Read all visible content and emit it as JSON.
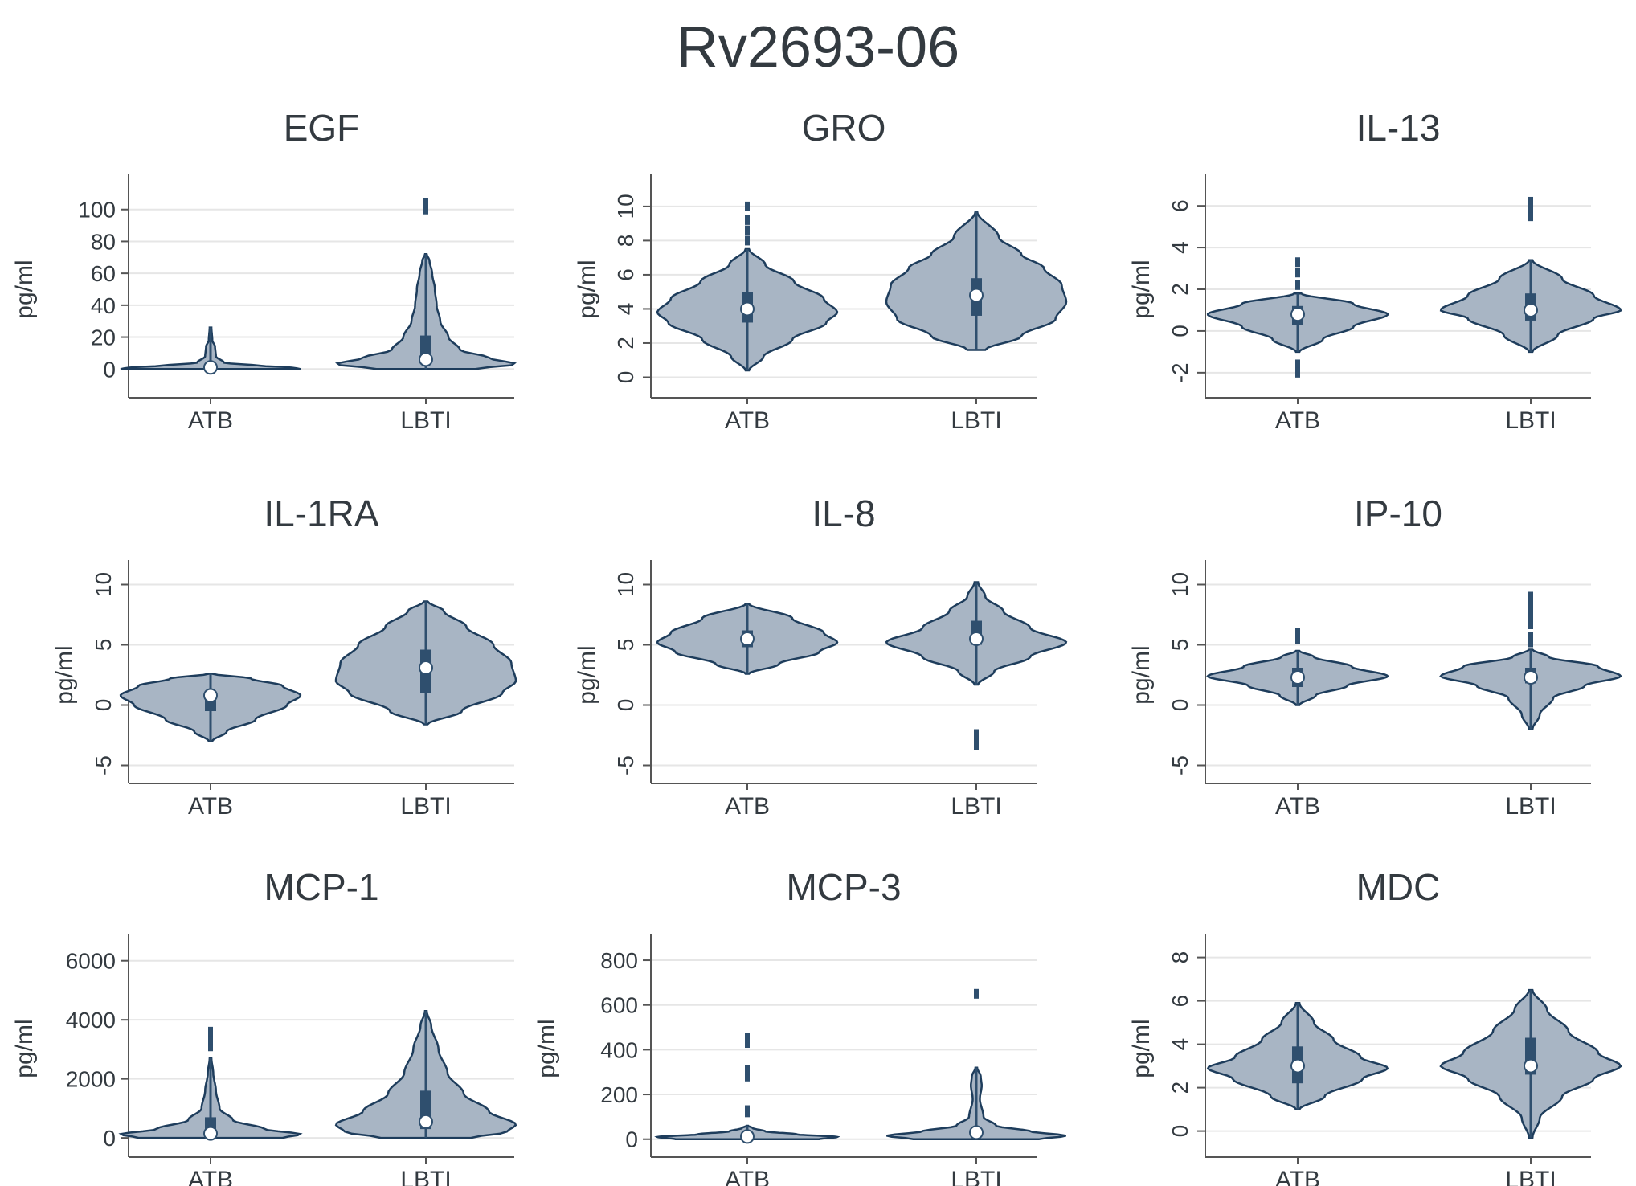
{
  "title": "Rv2693-06",
  "colors": {
    "violin_fill": "#a8b5c4",
    "violin_stroke": "#1e3d5c",
    "box": "#2f4f6e",
    "grid": "#e6e6e6",
    "axis": "#555555",
    "text": "#333a40"
  },
  "chart_data": [
    {
      "type": "violin",
      "title": "EGF",
      "ylabel": "pg/ml",
      "categories": [
        "ATB",
        "LBTI"
      ],
      "ylim": [
        -18,
        118
      ],
      "yticks": [
        0,
        20,
        40,
        60,
        80,
        100
      ],
      "tick_rotation": 0,
      "series": [
        {
          "name": "ATB",
          "min": 0,
          "max": 26,
          "q1": 0,
          "q3": 2,
          "median": 1,
          "density": [
            [
              0,
              1.0
            ],
            [
              1,
              0.9
            ],
            [
              2,
              0.55
            ],
            [
              4,
              0.15
            ],
            [
              8,
              0.06
            ],
            [
              14,
              0.05
            ],
            [
              18,
              0.02
            ],
            [
              26,
              0.01
            ]
          ],
          "outliers": []
        },
        {
          "name": "LBTI",
          "min": 0,
          "max": 72,
          "q1": 5,
          "q3": 21,
          "median": 6,
          "density": [
            [
              0,
              0.55
            ],
            [
              3,
              1.0
            ],
            [
              7,
              0.7
            ],
            [
              12,
              0.38
            ],
            [
              20,
              0.25
            ],
            [
              30,
              0.16
            ],
            [
              40,
              0.12
            ],
            [
              50,
              0.1
            ],
            [
              60,
              0.07
            ],
            [
              68,
              0.04
            ],
            [
              72,
              0.01
            ]
          ],
          "outliers": [
            100,
            104
          ]
        }
      ]
    },
    {
      "type": "violin",
      "title": "GRO",
      "ylabel": "pg/ml",
      "categories": [
        "ATB",
        "LBTI"
      ],
      "ylim": [
        -1.2,
        11.5
      ],
      "yticks": [
        0,
        2,
        4,
        6,
        8,
        10
      ],
      "tick_rotation": -90,
      "series": [
        {
          "name": "ATB",
          "min": 0.4,
          "max": 7.5,
          "q1": 3.2,
          "q3": 5.0,
          "median": 4.0,
          "density": [
            [
              0.4,
              0.02
            ],
            [
              1.2,
              0.18
            ],
            [
              2.2,
              0.5
            ],
            [
              3.2,
              0.88
            ],
            [
              3.8,
              1.0
            ],
            [
              4.6,
              0.85
            ],
            [
              5.6,
              0.52
            ],
            [
              6.6,
              0.2
            ],
            [
              7.5,
              0.02
            ]
          ],
          "outliers": [
            8,
            8.6,
            9.2,
            10
          ]
        },
        {
          "name": "LBTI",
          "min": 1.6,
          "max": 9.7,
          "q1": 3.6,
          "q3": 5.8,
          "median": 4.8,
          "density": [
            [
              1.6,
              0.1
            ],
            [
              2.4,
              0.5
            ],
            [
              3.4,
              0.88
            ],
            [
              4.4,
              1.0
            ],
            [
              5.4,
              0.95
            ],
            [
              6.4,
              0.75
            ],
            [
              7.2,
              0.5
            ],
            [
              8.2,
              0.25
            ],
            [
              9.7,
              0.01
            ]
          ],
          "outliers": []
        }
      ]
    },
    {
      "type": "violin",
      "title": "IL-13",
      "ylabel": "pg/ml",
      "categories": [
        "ATB",
        "LBTI"
      ],
      "ylim": [
        -3.2,
        7.2
      ],
      "yticks": [
        -2,
        0,
        2,
        4,
        6
      ],
      "tick_rotation": -90,
      "series": [
        {
          "name": "ATB",
          "min": -1.0,
          "max": 1.8,
          "q1": 0.3,
          "q3": 1.2,
          "median": 0.8,
          "density": [
            [
              -1.0,
              0.02
            ],
            [
              -0.4,
              0.28
            ],
            [
              0.2,
              0.62
            ],
            [
              0.8,
              1.0
            ],
            [
              1.3,
              0.62
            ],
            [
              1.8,
              0.04
            ]
          ],
          "outliers": [
            2.2,
            2.8,
            3.3,
            -1.6,
            -2.0
          ]
        },
        {
          "name": "LBTI",
          "min": -1.0,
          "max": 3.4,
          "q1": 0.5,
          "q3": 1.8,
          "median": 1.0,
          "density": [
            [
              -1.0,
              0.02
            ],
            [
              -0.2,
              0.3
            ],
            [
              0.6,
              0.7
            ],
            [
              1.0,
              1.0
            ],
            [
              1.7,
              0.7
            ],
            [
              2.5,
              0.35
            ],
            [
              3.4,
              0.02
            ]
          ],
          "outliers": [
            5.5,
            5.9,
            6.2
          ]
        }
      ]
    },
    {
      "type": "violin",
      "title": "IL-1RA",
      "ylabel": "pg/ml",
      "categories": [
        "ATB",
        "LBTI"
      ],
      "ylim": [
        -6.5,
        11.5
      ],
      "yticks": [
        -5,
        0,
        5,
        10
      ],
      "tick_rotation": -90,
      "series": [
        {
          "name": "ATB",
          "min": -3.0,
          "max": 2.6,
          "q1": -0.5,
          "q3": 1.2,
          "median": 0.8,
          "density": [
            [
              -3.0,
              0.02
            ],
            [
              -2.2,
              0.18
            ],
            [
              -1.2,
              0.5
            ],
            [
              0,
              0.85
            ],
            [
              0.8,
              1.0
            ],
            [
              1.6,
              0.8
            ],
            [
              2.2,
              0.45
            ],
            [
              2.6,
              0.02
            ]
          ],
          "outliers": []
        },
        {
          "name": "LBTI",
          "min": -1.6,
          "max": 8.6,
          "q1": 1.0,
          "q3": 4.6,
          "median": 3.1,
          "density": [
            [
              -1.6,
              0.02
            ],
            [
              -0.5,
              0.4
            ],
            [
              1,
              0.85
            ],
            [
              2,
              1.0
            ],
            [
              3.5,
              0.95
            ],
            [
              5,
              0.75
            ],
            [
              6.5,
              0.45
            ],
            [
              7.8,
              0.2
            ],
            [
              8.6,
              0.02
            ]
          ],
          "outliers": []
        }
      ]
    },
    {
      "type": "violin",
      "title": "IL-8",
      "ylabel": "pg/ml",
      "categories": [
        "ATB",
        "LBTI"
      ],
      "ylim": [
        -6.5,
        11.5
      ],
      "yticks": [
        -5,
        0,
        5,
        10
      ],
      "tick_rotation": -90,
      "series": [
        {
          "name": "ATB",
          "min": 2.6,
          "max": 8.4,
          "q1": 4.8,
          "q3": 6.2,
          "median": 5.5,
          "density": [
            [
              2.6,
              0.02
            ],
            [
              3.4,
              0.35
            ],
            [
              4.4,
              0.8
            ],
            [
              5.2,
              1.0
            ],
            [
              6.0,
              0.85
            ],
            [
              7.2,
              0.5
            ],
            [
              8.4,
              0.02
            ]
          ],
          "outliers": []
        },
        {
          "name": "LBTI",
          "min": 1.7,
          "max": 10.2,
          "q1": 5.0,
          "q3": 7.0,
          "median": 5.5,
          "density": [
            [
              1.7,
              0.02
            ],
            [
              2.8,
              0.2
            ],
            [
              4.0,
              0.6
            ],
            [
              5.2,
              1.0
            ],
            [
              6.4,
              0.6
            ],
            [
              7.8,
              0.3
            ],
            [
              9.0,
              0.1
            ],
            [
              10.2,
              0.02
            ]
          ],
          "outliers": [
            -2.4,
            -2.9,
            -3.3
          ]
        }
      ]
    },
    {
      "type": "violin",
      "title": "IP-10",
      "ylabel": "pg/ml",
      "categories": [
        "ATB",
        "LBTI"
      ],
      "ylim": [
        -6.5,
        11.5
      ],
      "yticks": [
        -5,
        0,
        5,
        10
      ],
      "tick_rotation": -90,
      "series": [
        {
          "name": "ATB",
          "min": 0.0,
          "max": 4.5,
          "q1": 1.5,
          "q3": 3.1,
          "median": 2.3,
          "density": [
            [
              0,
              0.02
            ],
            [
              0.8,
              0.2
            ],
            [
              1.6,
              0.55
            ],
            [
              2.4,
              1.0
            ],
            [
              3.2,
              0.6
            ],
            [
              4.0,
              0.18
            ],
            [
              4.5,
              0.02
            ]
          ],
          "outliers": [
            5.5,
            6.0
          ]
        },
        {
          "name": "LBTI",
          "min": -2.0,
          "max": 4.6,
          "q1": 1.8,
          "q3": 3.1,
          "median": 2.3,
          "density": [
            [
              -2,
              0.02
            ],
            [
              -0.8,
              0.1
            ],
            [
              0.6,
              0.25
            ],
            [
              1.6,
              0.6
            ],
            [
              2.4,
              1.0
            ],
            [
              3.2,
              0.75
            ],
            [
              4.0,
              0.2
            ],
            [
              4.6,
              0.02
            ]
          ],
          "outliers": [
            5.2,
            5.7,
            6.7,
            7.5,
            8.3,
            9.0
          ]
        }
      ]
    },
    {
      "type": "violin",
      "title": "MCP-1",
      "ylabel": "pg/ml",
      "categories": [
        "ATB",
        "LBTI"
      ],
      "ylim": [
        -650,
        6700
      ],
      "yticks": [
        0,
        2000,
        4000,
        6000
      ],
      "tick_rotation": 0,
      "series": [
        {
          "name": "ATB",
          "min": 0,
          "max": 2700,
          "q1": 80,
          "q3": 700,
          "median": 150,
          "density": [
            [
              0,
              0.8
            ],
            [
              120,
              1.0
            ],
            [
              300,
              0.6
            ],
            [
              600,
              0.25
            ],
            [
              1000,
              0.1
            ],
            [
              1600,
              0.06
            ],
            [
              2200,
              0.03
            ],
            [
              2700,
              0.01
            ]
          ],
          "outliers": [
            3100,
            3350,
            3600
          ]
        },
        {
          "name": "LBTI",
          "min": 0,
          "max": 4300,
          "q1": 300,
          "q3": 1600,
          "median": 550,
          "density": [
            [
              0,
              0.5
            ],
            [
              200,
              0.9
            ],
            [
              450,
              1.0
            ],
            [
              900,
              0.7
            ],
            [
              1500,
              0.42
            ],
            [
              2200,
              0.24
            ],
            [
              3000,
              0.14
            ],
            [
              3800,
              0.06
            ],
            [
              4300,
              0.01
            ]
          ],
          "outliers": []
        }
      ]
    },
    {
      "type": "violin",
      "title": "MCP-3",
      "ylabel": "pg/ml",
      "categories": [
        "ATB",
        "LBTI"
      ],
      "ylim": [
        -80,
        890
      ],
      "yticks": [
        0,
        200,
        400,
        600,
        800
      ],
      "tick_rotation": 0,
      "series": [
        {
          "name": "ATB",
          "min": 0,
          "max": 60,
          "q1": 5,
          "q3": 25,
          "median": 12,
          "density": [
            [
              0,
              0.8
            ],
            [
              10,
              1.0
            ],
            [
              22,
              0.55
            ],
            [
              35,
              0.2
            ],
            [
              50,
              0.06
            ],
            [
              60,
              0.01
            ]
          ],
          "outliers": [
            120,
            130,
            280,
            310,
            430,
            455
          ]
        },
        {
          "name": "LBTI",
          "min": 0,
          "max": 320,
          "q1": 10,
          "q3": 50,
          "median": 30,
          "density": [
            [
              0,
              0.7
            ],
            [
              15,
              1.0
            ],
            [
              35,
              0.6
            ],
            [
              60,
              0.22
            ],
            [
              100,
              0.08
            ],
            [
              180,
              0.04
            ],
            [
              240,
              0.06
            ],
            [
              280,
              0.05
            ],
            [
              320,
              0.01
            ]
          ],
          "outliers": [
            650
          ]
        }
      ]
    },
    {
      "type": "violin",
      "title": "MDC",
      "ylabel": "pg/ml",
      "categories": [
        "ATB",
        "LBTI"
      ],
      "ylim": [
        -1.2,
        8.8
      ],
      "yticks": [
        0,
        2,
        4,
        6,
        8
      ],
      "tick_rotation": -90,
      "series": [
        {
          "name": "ATB",
          "min": 1.0,
          "max": 5.9,
          "q1": 2.2,
          "q3": 3.9,
          "median": 3.0,
          "density": [
            [
              1,
              0.02
            ],
            [
              1.6,
              0.3
            ],
            [
              2.4,
              0.72
            ],
            [
              2.9,
              1.0
            ],
            [
              3.4,
              0.7
            ],
            [
              4.2,
              0.4
            ],
            [
              5.0,
              0.18
            ],
            [
              5.9,
              0.02
            ]
          ],
          "outliers": []
        },
        {
          "name": "LBTI",
          "min": -0.3,
          "max": 6.5,
          "q1": 2.6,
          "q3": 4.3,
          "median": 3.0,
          "density": [
            [
              -0.3,
              0.02
            ],
            [
              0.6,
              0.1
            ],
            [
              1.6,
              0.35
            ],
            [
              2.4,
              0.7
            ],
            [
              3.0,
              1.0
            ],
            [
              3.6,
              0.75
            ],
            [
              4.6,
              0.42
            ],
            [
              5.6,
              0.18
            ],
            [
              6.5,
              0.02
            ]
          ],
          "outliers": []
        }
      ]
    }
  ]
}
